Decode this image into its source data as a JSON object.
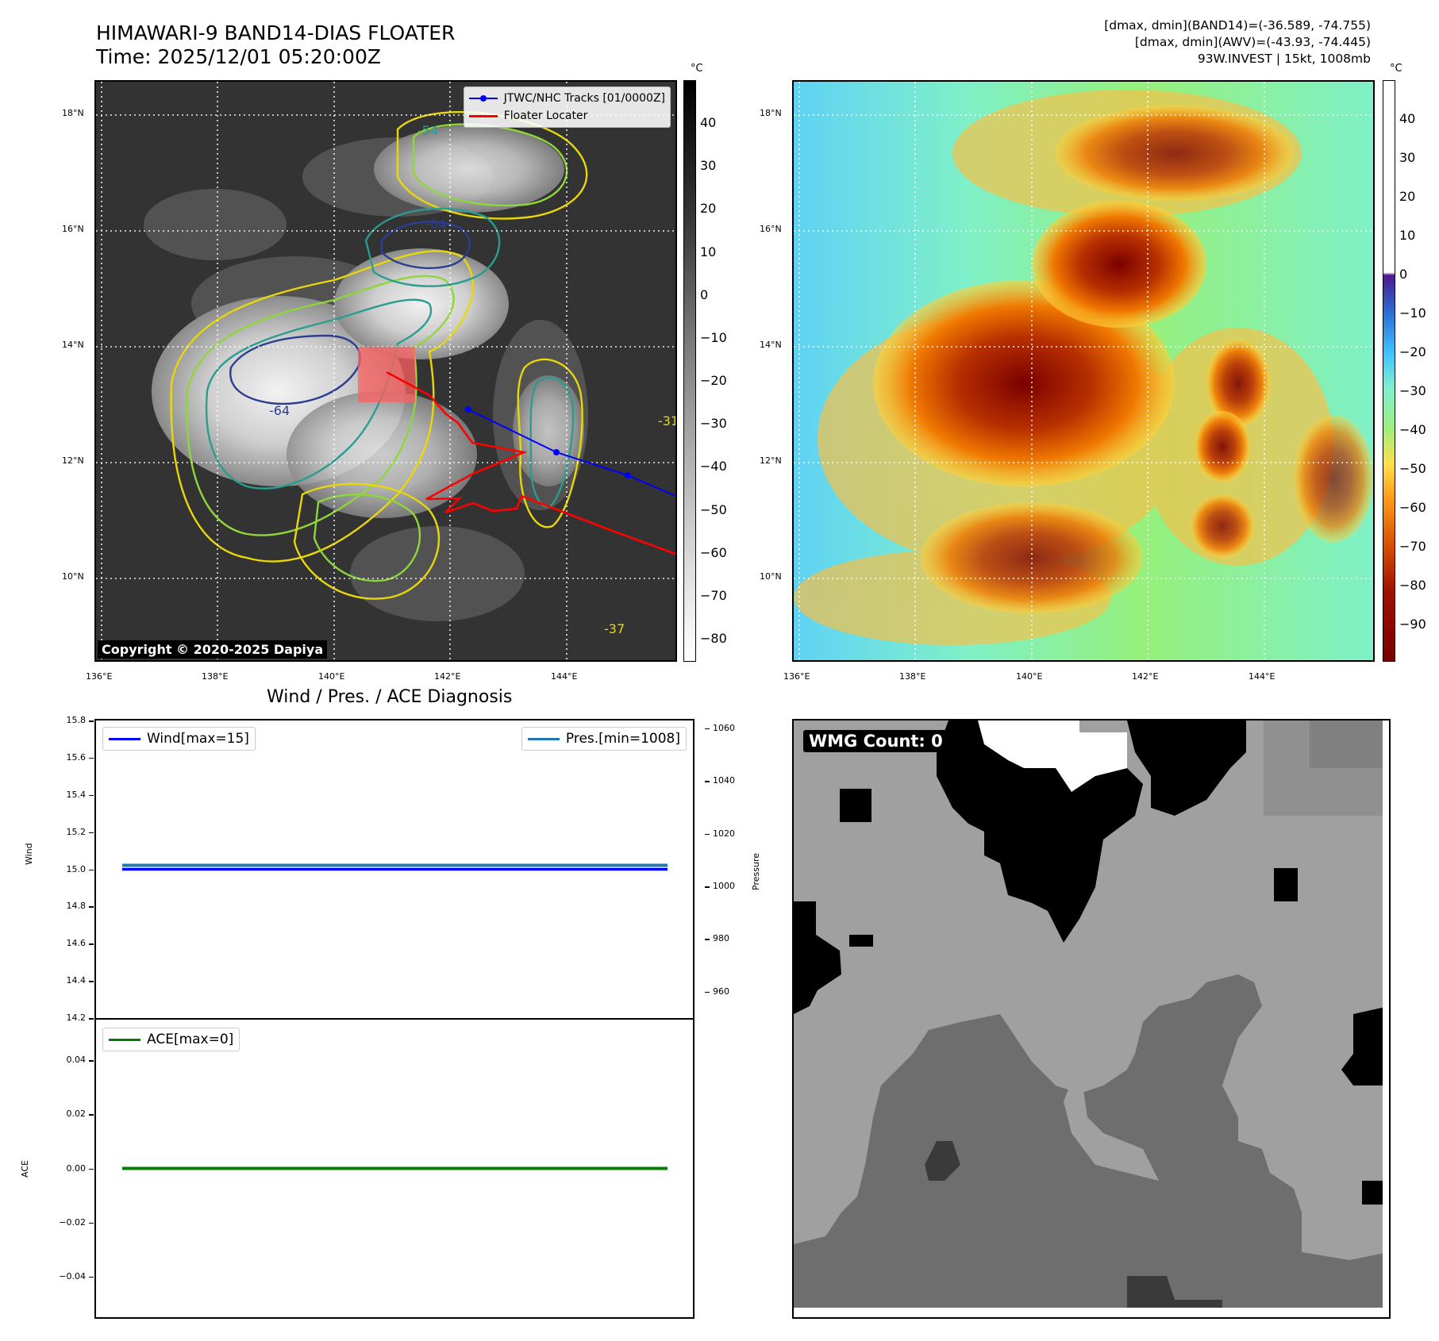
{
  "header": {
    "title_line1": "HIMAWARI-9 BAND14-DIAS FLOATER",
    "title_line2": "Time: 2025/12/01 05:20:00Z",
    "info_line1": "[dmax, dmin](BAND14)=(-36.589, -74.755)",
    "info_line2": "[dmax, dmin](AWV)=(-43.93, -74.445)",
    "info_line3": "93W.INVEST | 15kt, 1008mb"
  },
  "map_panels": {
    "lon_ticks": [
      "136°E",
      "138°E",
      "140°E",
      "142°E",
      "144°E"
    ],
    "lat_ticks": [
      "18°N",
      "16°N",
      "14°N",
      "12°N",
      "10°N"
    ],
    "copyright": "Copyright © 2020-2025 Dapiya",
    "legend": {
      "tracks_label": "JTWC/NHC Tracks [01/0000Z]",
      "locater_label": "Floater Locater"
    },
    "contour_labels": [
      "-54",
      "-64",
      "-64",
      "-31",
      "-37"
    ]
  },
  "colorbar_left": {
    "unit": "°C",
    "ticks": [
      "40",
      "30",
      "20",
      "10",
      "0",
      "−10",
      "−20",
      "−30",
      "−40",
      "−50",
      "−60",
      "−70",
      "−80"
    ]
  },
  "colorbar_right": {
    "unit": "°C",
    "ticks": [
      "40",
      "30",
      "20",
      "10",
      "0",
      "−10",
      "−20",
      "−30",
      "−40",
      "−50",
      "−60",
      "−70",
      "−80",
      "−90"
    ]
  },
  "diagnosis": {
    "title": "Wind / Pres. / ACE Diagnosis",
    "wind_label": "Wind",
    "pressure_label": "Pressure",
    "ace_label": "ACE",
    "legend_wind": "Wind[max=15]",
    "legend_pres": "Pres.[min=1008]",
    "legend_ace": "ACE[max=0]",
    "wind_ticks": [
      "15.8",
      "15.6",
      "15.4",
      "15.2",
      "15.0",
      "14.8",
      "14.6",
      "14.4",
      "14.2"
    ],
    "pres_ticks": [
      "1060",
      "1040",
      "1020",
      "1000",
      "980",
      "960"
    ],
    "ace_ticks": [
      "0.04",
      "0.02",
      "0.00",
      "−0.02",
      "−0.04"
    ]
  },
  "wmg": {
    "label": "WMG Count: 0"
  },
  "colors": {
    "wind": "#0000ff",
    "pressure": "#1f77b4",
    "ace": "#008000",
    "track_jtwc": "#0000ff",
    "floater_locater": "#ff0000"
  },
  "chart_data": [
    {
      "type": "line",
      "title": "Wind / Pres. / ACE Diagnosis",
      "ylabel": "Wind",
      "ylim": [
        14.2,
        15.8
      ],
      "series": [
        {
          "name": "Wind[max=15]",
          "values": [
            15,
            15
          ]
        }
      ]
    },
    {
      "type": "line",
      "ylabel": "Pressure",
      "ylim": [
        950,
        1063
      ],
      "series": [
        {
          "name": "Pres.[min=1008]",
          "values": [
            1008,
            1008
          ]
        }
      ]
    },
    {
      "type": "line",
      "ylabel": "ACE",
      "ylim": [
        -0.055,
        0.055
      ],
      "series": [
        {
          "name": "ACE[max=0]",
          "values": [
            0,
            0
          ]
        }
      ]
    }
  ]
}
